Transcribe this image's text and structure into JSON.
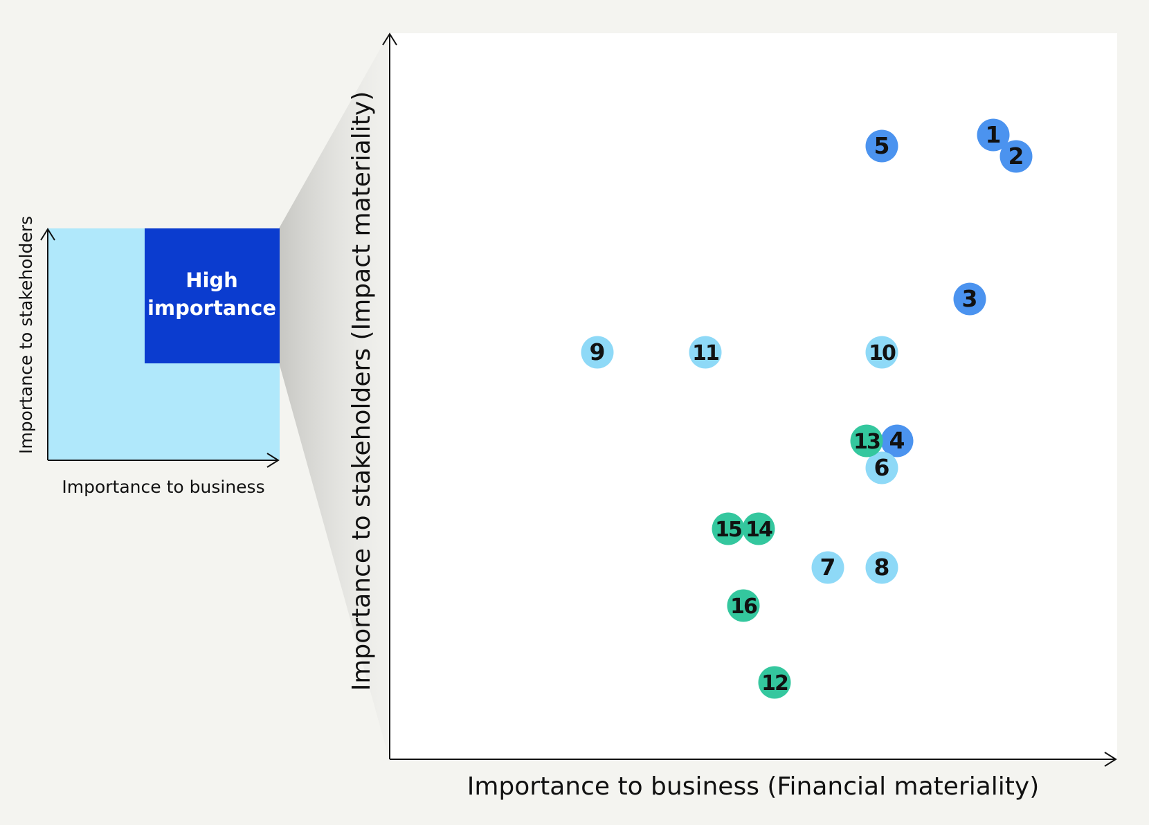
{
  "mini_chart": {
    "xlabel": "Importance to business",
    "ylabel": "Importance to stakeholders",
    "highlight_label_line1": "High",
    "highlight_label_line2": "importance",
    "region_colors": {
      "low": "#b0e8fb",
      "high": "#0b3ccf"
    }
  },
  "chart_data": {
    "type": "scatter",
    "title": "",
    "xlabel": "Importance to business (Financial materiality)",
    "ylabel": "Importance to stakeholders (Impact materiality)",
    "xlim": [
      0,
      100
    ],
    "ylim": [
      0,
      100
    ],
    "grid": false,
    "colors": {
      "dark-blue": "#4b93ef",
      "light-blue": "#8ed9f7",
      "green": "#34c79e"
    },
    "points": [
      {
        "label": "1",
        "x": 87.2,
        "y": 90.2,
        "color": "dark-blue"
      },
      {
        "label": "2",
        "x": 90.5,
        "y": 87.1,
        "color": "dark-blue"
      },
      {
        "label": "3",
        "x": 83.8,
        "y": 66.5,
        "color": "dark-blue"
      },
      {
        "label": "4",
        "x": 73.3,
        "y": 46.0,
        "color": "dark-blue"
      },
      {
        "label": "5",
        "x": 71.1,
        "y": 88.6,
        "color": "dark-blue"
      },
      {
        "label": "6",
        "x": 71.1,
        "y": 42.1,
        "color": "light-blue"
      },
      {
        "label": "7",
        "x": 63.3,
        "y": 27.7,
        "color": "light-blue"
      },
      {
        "label": "8",
        "x": 71.1,
        "y": 27.7,
        "color": "light-blue"
      },
      {
        "label": "9",
        "x": 30.0,
        "y": 58.8,
        "color": "light-blue"
      },
      {
        "label": "10",
        "x": 71.1,
        "y": 58.8,
        "color": "light-blue"
      },
      {
        "label": "11",
        "x": 45.6,
        "y": 58.8,
        "color": "light-blue"
      },
      {
        "label": "12",
        "x": 55.6,
        "y": 11.1,
        "color": "green"
      },
      {
        "label": "13",
        "x": 68.9,
        "y": 46.0,
        "color": "green"
      },
      {
        "label": "14",
        "x": 53.3,
        "y": 33.3,
        "color": "green"
      },
      {
        "label": "15",
        "x": 48.9,
        "y": 33.3,
        "color": "green"
      },
      {
        "label": "16",
        "x": 51.1,
        "y": 22.2,
        "color": "green"
      }
    ]
  }
}
